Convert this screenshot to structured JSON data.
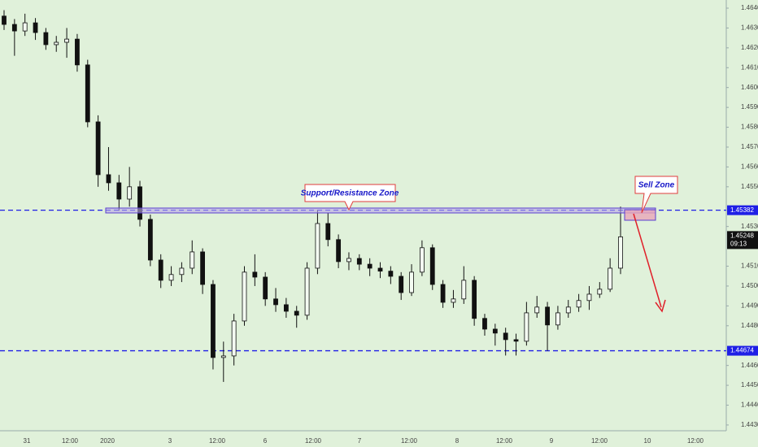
{
  "chart_data": {
    "type": "candlestick",
    "candle_color": "#111111",
    "background": "#e0f1da",
    "ylim": [
      1.44271,
      1.46441
    ],
    "yticks": [
      {
        "value": 1.464,
        "label": "1.46400"
      },
      {
        "value": 1.463,
        "label": "1.46300"
      },
      {
        "value": 1.462,
        "label": "1.46200"
      },
      {
        "value": 1.461,
        "label": "1.46100"
      },
      {
        "value": 1.46,
        "label": "1.46000"
      },
      {
        "value": 1.459,
        "label": "1.45900"
      },
      {
        "value": 1.458,
        "label": "1.45800"
      },
      {
        "value": 1.457,
        "label": "1.45700"
      },
      {
        "value": 1.456,
        "label": "1.45600"
      },
      {
        "value": 1.455,
        "label": "1.45500"
      },
      {
        "value": 1.453,
        "label": "1.45300"
      },
      {
        "value": 1.451,
        "label": "1.45100"
      },
      {
        "value": 1.45,
        "label": "1.45000"
      },
      {
        "value": 1.449,
        "label": "1.44900"
      },
      {
        "value": 1.448,
        "label": "1.44800"
      },
      {
        "value": 1.446,
        "label": "1.44600"
      },
      {
        "value": 1.445,
        "label": "1.44500"
      },
      {
        "value": 1.444,
        "label": "1.44400"
      },
      {
        "value": 1.443,
        "label": "1.44300"
      }
    ],
    "x_labels": [
      "31",
      "12:00",
      "2020",
      "3",
      "12:00",
      "6",
      "12:00",
      "7",
      "12:00",
      "8",
      "12:00",
      "9",
      "12:00",
      "10",
      "12:00"
    ],
    "open": [
      1.4636,
      1.46318,
      1.46285,
      1.46326,
      1.46277,
      1.46216,
      1.46228,
      1.46244,
      1.46114,
      1.45827,
      1.45561,
      1.4552,
      1.45438,
      1.455,
      1.45336,
      1.45131,
      1.45029,
      1.45058,
      1.4509,
      1.45172,
      1.45008,
      1.4464,
      1.44648,
      1.44824,
      1.4507,
      1.45045,
      1.44935,
      1.44906,
      1.44873,
      1.44853,
      1.4509,
      1.45315,
      1.45234,
      1.45123,
      1.45139,
      1.4511,
      1.4509,
      1.45075,
      1.45049,
      1.44967,
      1.4507,
      1.45193,
      1.45008,
      1.44918,
      1.44935,
      1.45029,
      1.44837,
      1.44783,
      1.44763,
      1.4473,
      1.44722,
      1.44865,
      1.44894,
      1.44804,
      1.44865,
      1.44894,
      1.44927,
      1.44959,
      1.44984,
      1.4509
    ],
    "high": [
      1.4639,
      1.46345,
      1.46372,
      1.4635,
      1.463,
      1.4626,
      1.463,
      1.4627,
      1.4614,
      1.4586,
      1.457,
      1.4556,
      1.456,
      1.4553,
      1.4536,
      1.4516,
      1.451,
      1.4512,
      1.4523,
      1.4519,
      1.4503,
      1.4472,
      1.4486,
      1.451,
      1.4516,
      1.4507,
      1.4499,
      1.4494,
      1.449,
      1.4512,
      1.45382,
      1.4537,
      1.4526,
      1.4517,
      1.4516,
      1.4514,
      1.4512,
      1.451,
      1.4507,
      1.4511,
      1.4523,
      1.4521,
      1.4503,
      1.4498,
      1.451,
      1.4505,
      1.4486,
      1.4481,
      1.4479,
      1.4476,
      1.4492,
      1.4495,
      1.4492,
      1.449,
      1.4493,
      1.4496,
      1.45,
      1.4502,
      1.4514,
      1.454
    ],
    "low": [
      1.4629,
      1.4616,
      1.4626,
      1.4624,
      1.4619,
      1.4618,
      1.4615,
      1.4608,
      1.458,
      1.455,
      1.4548,
      1.4538,
      1.454,
      1.453,
      1.451,
      1.4499,
      1.45,
      1.4502,
      1.4506,
      1.4496,
      1.4458,
      1.44517,
      1.446,
      1.448,
      1.45,
      1.449,
      1.4487,
      1.4484,
      1.4479,
      1.4483,
      1.4506,
      1.452,
      1.4509,
      1.4508,
      1.4508,
      1.4505,
      1.4504,
      1.4501,
      1.4493,
      1.4495,
      1.4505,
      1.4498,
      1.4489,
      1.4489,
      1.4491,
      1.448,
      1.4475,
      1.447,
      1.4465,
      1.4465,
      1.447,
      1.4484,
      1.44674,
      1.4478,
      1.4484,
      1.4487,
      1.4488,
      1.4494,
      1.4497,
      1.4506
    ],
    "close": [
      1.46318,
      1.46285,
      1.46326,
      1.46277,
      1.46216,
      1.46228,
      1.46244,
      1.46114,
      1.45827,
      1.45561,
      1.4552,
      1.45438,
      1.455,
      1.45336,
      1.45131,
      1.45029,
      1.45058,
      1.4509,
      1.45172,
      1.45008,
      1.4464,
      1.44648,
      1.44824,
      1.4507,
      1.45045,
      1.44935,
      1.44906,
      1.44873,
      1.44853,
      1.4509,
      1.45315,
      1.45234,
      1.45123,
      1.45139,
      1.4511,
      1.4509,
      1.45075,
      1.45049,
      1.44967,
      1.4507,
      1.45193,
      1.45008,
      1.44918,
      1.44935,
      1.45029,
      1.44837,
      1.44783,
      1.44763,
      1.4473,
      1.44722,
      1.44865,
      1.44894,
      1.44804,
      1.44865,
      1.44894,
      1.44927,
      1.44959,
      1.44984,
      1.4509,
      1.45248
    ],
    "levels": [
      {
        "value": 1.45382,
        "label": "1.45382"
      },
      {
        "value": 1.44674,
        "label": "1.44674"
      }
    ],
    "level_color": "#1f1fe6",
    "last_price": {
      "value": 1.45248,
      "label": "1.45248"
    },
    "countdown": "09:13",
    "annotations": [
      "Support/Resistance Zone",
      "Sell Zone"
    ]
  }
}
